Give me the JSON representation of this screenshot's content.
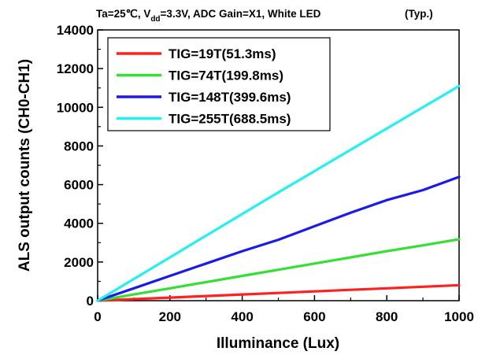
{
  "chart_data": {
    "type": "line",
    "title": {
      "part1": "Ta=25℃, V",
      "sub": "dd",
      "part2": "=3.3V, ADC Gain=X1, White LED",
      "note": "(Typ.)"
    },
    "xlabel": "Illuminance (Lux)",
    "ylabel": "ALS output counts (CH0-CH1)",
    "xlim": [
      0,
      1000
    ],
    "ylim": [
      0,
      14000
    ],
    "xticks": [
      "0",
      "200",
      "400",
      "600",
      "800",
      "1000"
    ],
    "yticks": [
      "0",
      "2000",
      "4000",
      "6000",
      "8000",
      "10000",
      "12000",
      "14000"
    ],
    "grid": false,
    "legend_position": "top-left",
    "series": [
      {
        "name": "TIG=19T(51.3ms)",
        "color": "#ff2020",
        "points": [
          [
            0,
            0
          ],
          [
            50,
            40
          ],
          [
            100,
            80
          ],
          [
            200,
            160
          ],
          [
            300,
            240
          ],
          [
            400,
            320
          ],
          [
            500,
            400
          ],
          [
            600,
            480
          ],
          [
            700,
            560
          ],
          [
            800,
            640
          ],
          [
            900,
            720
          ],
          [
            1000,
            800
          ]
        ]
      },
      {
        "name": "TIG=74T(199.8ms)",
        "color": "#33e033",
        "points": [
          [
            0,
            0
          ],
          [
            50,
            160
          ],
          [
            100,
            320
          ],
          [
            200,
            640
          ],
          [
            300,
            960
          ],
          [
            400,
            1280
          ],
          [
            500,
            1600
          ],
          [
            600,
            1920
          ],
          [
            700,
            2240
          ],
          [
            800,
            2560
          ],
          [
            900,
            2860
          ],
          [
            1000,
            3180
          ]
        ]
      },
      {
        "name": "TIG=148T(399.6ms)",
        "color": "#1a1aee",
        "points": [
          [
            0,
            0
          ],
          [
            50,
            320
          ],
          [
            100,
            640
          ],
          [
            200,
            1280
          ],
          [
            300,
            1920
          ],
          [
            400,
            2560
          ],
          [
            500,
            3150
          ],
          [
            600,
            3850
          ],
          [
            700,
            4550
          ],
          [
            800,
            5200
          ],
          [
            900,
            5720
          ],
          [
            1000,
            6400
          ]
        ]
      },
      {
        "name": "TIG=255T(688.5ms)",
        "color": "#22f0f5",
        "points": [
          [
            0,
            0
          ],
          [
            50,
            560
          ],
          [
            100,
            1120
          ],
          [
            200,
            2240
          ],
          [
            300,
            3360
          ],
          [
            400,
            4480
          ],
          [
            500,
            5600
          ],
          [
            600,
            6700
          ],
          [
            700,
            7800
          ],
          [
            800,
            8900
          ],
          [
            900,
            10000
          ],
          [
            1000,
            11100
          ]
        ]
      }
    ]
  }
}
